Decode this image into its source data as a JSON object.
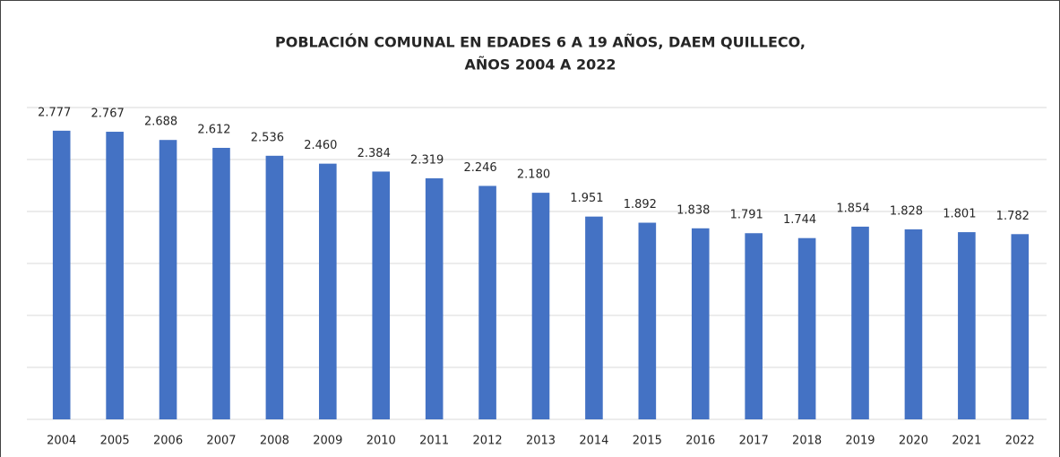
{
  "chart_data": {
    "type": "bar",
    "title": [
      "POBLACIÓN COMUNAL EN EDADES 6 A 19 AÑOS, DAEM QUILLECO,",
      "AÑOS 2004 A 2022"
    ],
    "categories": [
      "2004",
      "2005",
      "2006",
      "2007",
      "2008",
      "2009",
      "2010",
      "2011",
      "2012",
      "2013",
      "2014",
      "2015",
      "2016",
      "2017",
      "2018",
      "2019",
      "2020",
      "2021",
      "2022"
    ],
    "values": [
      2777,
      2767,
      2688,
      2612,
      2536,
      2460,
      2384,
      2319,
      2246,
      2180,
      1951,
      1892,
      1838,
      1791,
      1744,
      1854,
      1828,
      1801,
      1782
    ],
    "value_labels": [
      "2.777",
      "2.767",
      "2.688",
      "2.612",
      "2.536",
      "2.460",
      "2.384",
      "2.319",
      "2.246",
      "2.180",
      "1.951",
      "1.892",
      "1.838",
      "1.791",
      "1.744",
      "1.854",
      "1.828",
      "1.801",
      "1.782"
    ],
    "color": "#4472c4",
    "ylim": [
      0,
      3000
    ],
    "yticks": [
      0,
      500,
      1000,
      1500,
      2000,
      2500,
      3000
    ],
    "grid": true
  }
}
